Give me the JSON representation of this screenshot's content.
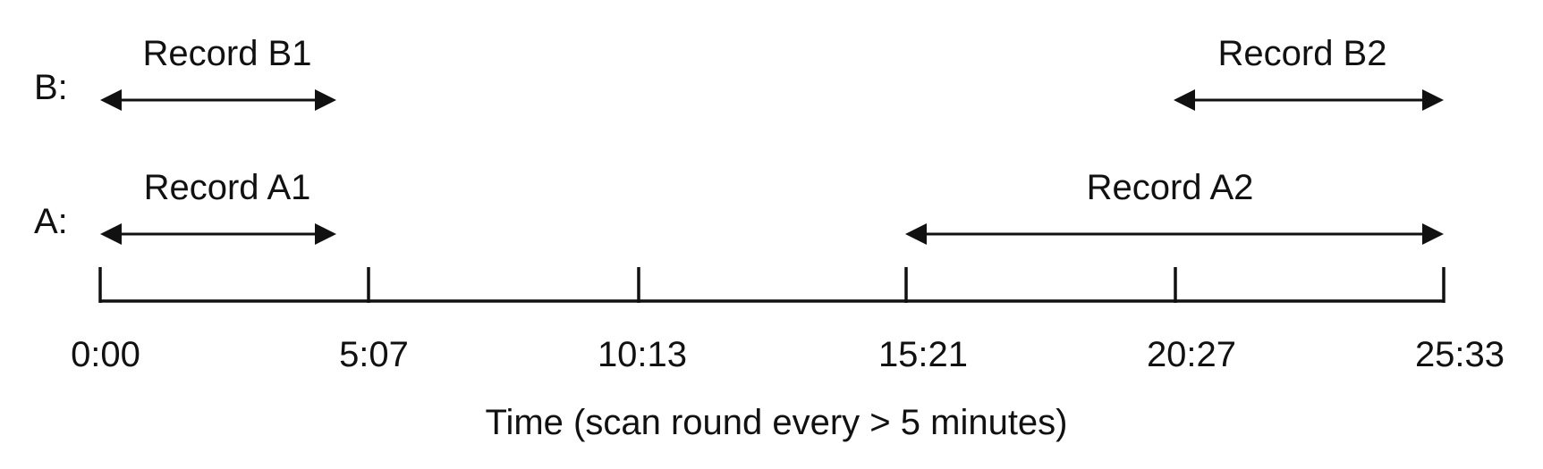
{
  "rows": [
    {
      "key": "B",
      "label": "B:"
    },
    {
      "key": "A",
      "label": "A:"
    }
  ],
  "records": [
    {
      "id": "B1",
      "row": "B",
      "label": "Record B1",
      "start": "0:00",
      "end": "5:07"
    },
    {
      "id": "B2",
      "row": "B",
      "label": "Record B2",
      "start": "20:27",
      "end": "25:33"
    },
    {
      "id": "A1",
      "row": "A",
      "label": "Record A1",
      "start": "0:00",
      "end": "5:07"
    },
    {
      "id": "A2",
      "row": "A",
      "label": "Record A2",
      "start": "15:21",
      "end": "25:33"
    }
  ],
  "axis": {
    "ticks": [
      "0:00",
      "5:07",
      "10:13",
      "15:21",
      "20:27",
      "25:33"
    ],
    "title": "Time (scan round every > 5 minutes)"
  },
  "colors": {
    "ink": "#111111",
    "background": "#ffffff"
  }
}
